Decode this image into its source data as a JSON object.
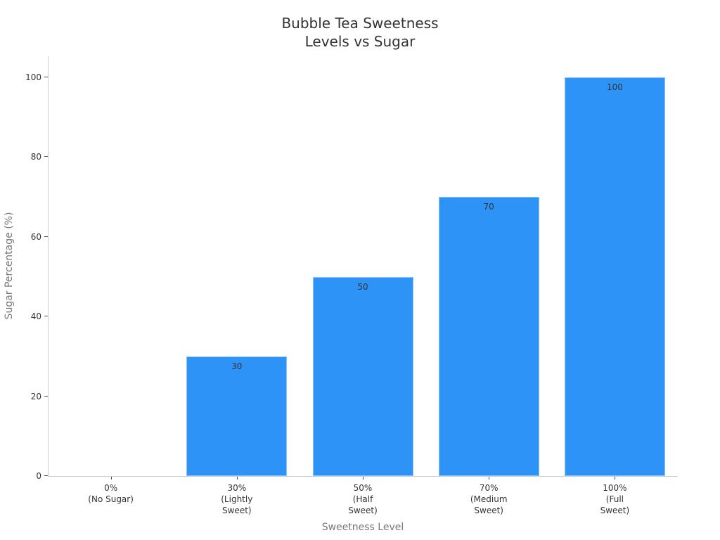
{
  "chart_data": {
    "type": "bar",
    "title": "Bubble Tea Sweetness Levels vs Sugar",
    "title_lines": [
      "Bubble Tea Sweetness",
      "Levels vs Sugar"
    ],
    "xlabel": "Sweetness Level",
    "ylabel": "Sugar Percentage (%)",
    "categories": [
      "0% (No Sugar)",
      "30% (Lightly Sweet)",
      "50% (Half Sweet)",
      "70% (Medium Sweet)",
      "100% (Full Sweet)"
    ],
    "category_lines": [
      [
        "0%",
        "(No Sugar)"
      ],
      [
        "30%",
        "(Lightly",
        "Sweet)"
      ],
      [
        "50%",
        "(Half",
        "Sweet)"
      ],
      [
        "70%",
        "(Medium",
        "Sweet)"
      ],
      [
        "100%",
        "(Full",
        "Sweet)"
      ]
    ],
    "values": [
      0,
      30,
      50,
      70,
      100
    ],
    "data_labels": [
      "",
      "30",
      "50",
      "70",
      "100"
    ],
    "yticks": [
      0,
      20,
      40,
      60,
      80,
      100
    ],
    "ylim": [
      0,
      105
    ],
    "grid": false,
    "legend": null,
    "bar_color": "#2e93f7"
  }
}
